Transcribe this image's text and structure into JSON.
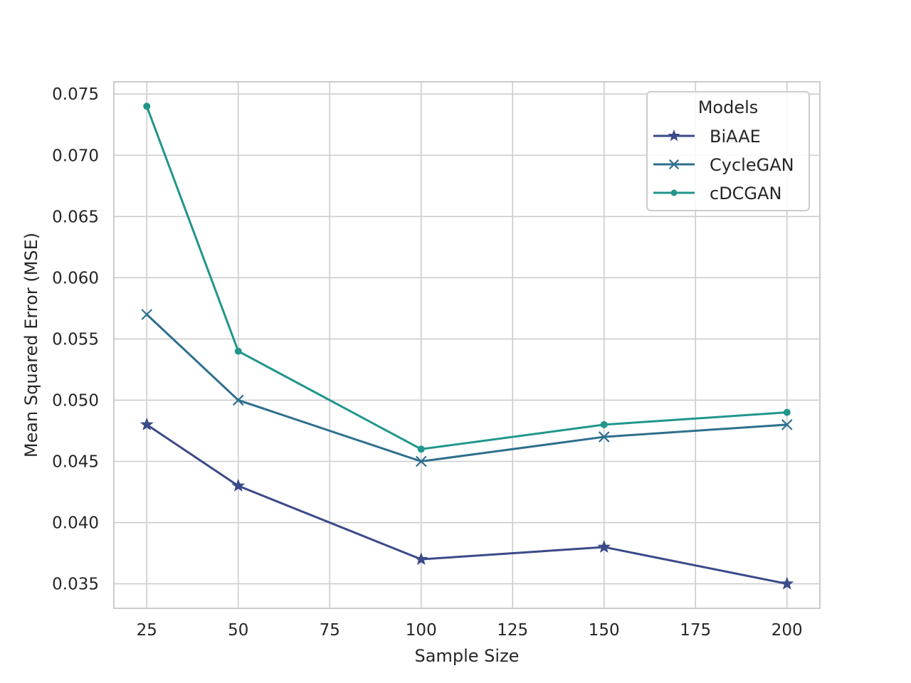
{
  "chart_data": {
    "type": "line",
    "title": "",
    "xlabel": "Sample Size",
    "ylabel": "Mean Squared Error (MSE)",
    "x": [
      25,
      50,
      100,
      150,
      200
    ],
    "xlim": [
      16,
      209
    ],
    "ylim": [
      0.033,
      0.076
    ],
    "xticks": [
      25,
      50,
      75,
      100,
      125,
      150,
      175,
      200
    ],
    "xtick_labels": [
      "25",
      "50",
      "75",
      "100",
      "125",
      "150",
      "175",
      "200"
    ],
    "yticks": [
      0.035,
      0.04,
      0.045,
      0.05,
      0.055,
      0.06,
      0.065,
      0.07,
      0.075
    ],
    "ytick_labels": [
      "0.035",
      "0.040",
      "0.045",
      "0.050",
      "0.055",
      "0.060",
      "0.065",
      "0.070",
      "0.075"
    ],
    "grid": true,
    "legend": {
      "title": "Models",
      "placement": "top-right"
    },
    "series": [
      {
        "name": "BiAAE",
        "values": [
          0.048,
          0.043,
          0.037,
          0.038,
          0.035
        ],
        "color": "#3b4a89",
        "marker": "star"
      },
      {
        "name": "CycleGAN",
        "values": [
          0.057,
          0.05,
          0.045,
          0.047,
          0.048
        ],
        "color": "#2e6f8e",
        "marker": "x"
      },
      {
        "name": "cDCGAN",
        "values": [
          0.074,
          0.054,
          0.046,
          0.048,
          0.049
        ],
        "color": "#21968b",
        "marker": "dot"
      }
    ]
  }
}
